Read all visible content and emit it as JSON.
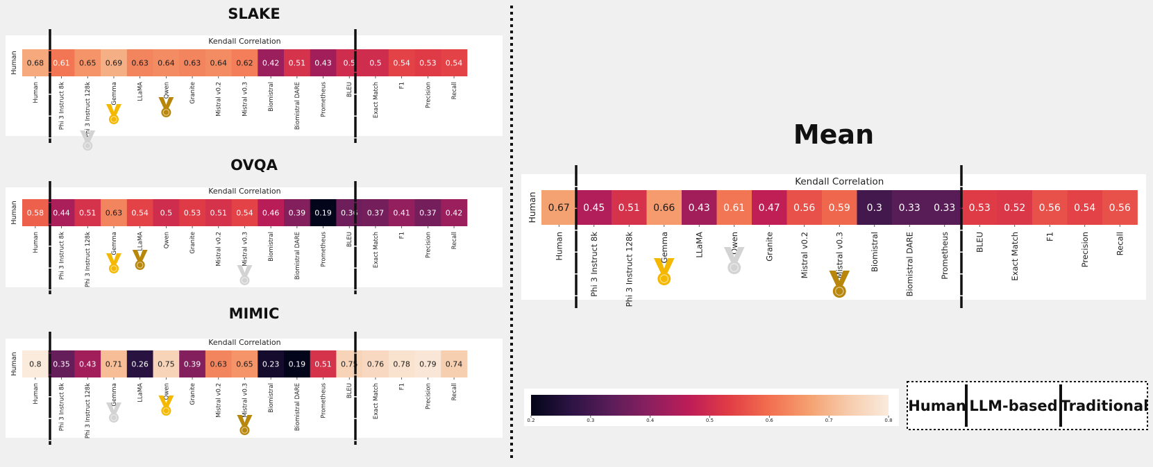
{
  "chart_data": [
    {
      "type": "heatmap",
      "title": "SLAKE",
      "subtitle": "Kendall Correlation",
      "ylabel": "Human",
      "categories": [
        "Human",
        "Phi 3 Instruct 8k",
        "Phi 3 Instruct 128k",
        "Gemma",
        "LLaMA",
        "Qwen",
        "Granite",
        "Mistral v0.2",
        "Mistral v0.3",
        "Biomistral",
        "Biomistral DARE",
        "Prometheus",
        "BLEU",
        "Exact Match",
        "F1",
        "Precision",
        "Recall"
      ],
      "values": [
        0.68,
        0.61,
        0.65,
        0.69,
        0.63,
        0.64,
        0.63,
        0.64,
        0.62,
        0.42,
        0.51,
        0.43,
        0.5,
        0.5,
        0.54,
        0.53,
        0.54
      ],
      "medals": {
        "gold": "Gemma",
        "silver": "Phi 3 Instruct 128k",
        "bronze": "Qwen"
      }
    },
    {
      "type": "heatmap",
      "title": "OVQA",
      "subtitle": "Kendall Correlation",
      "ylabel": "Human",
      "categories": [
        "Human",
        "Phi 3 Instruct 8k",
        "Phi 3 Instruct 128k",
        "Gemma",
        "LLaMA",
        "Qwen",
        "Granite",
        "Mistral v0.2",
        "Mistral v0.3",
        "Biomistral",
        "Biomistral DARE",
        "Prometheus",
        "BLEU",
        "Exact Match",
        "F1",
        "Precision",
        "Recall"
      ],
      "values": [
        0.58,
        0.44,
        0.51,
        0.63,
        0.54,
        0.5,
        0.53,
        0.51,
        0.54,
        0.46,
        0.39,
        0.19,
        0.36,
        0.37,
        0.41,
        0.37,
        0.42
      ],
      "medals": {
        "gold": "Gemma",
        "silver": "Mistral v0.3",
        "bronze": "LLaMA"
      }
    },
    {
      "type": "heatmap",
      "title": "MIMIC",
      "subtitle": "Kendall Correlation",
      "ylabel": "Human",
      "categories": [
        "Human",
        "Phi 3 Instruct 8k",
        "Phi 3 Instruct 128k",
        "Gemma",
        "LLaMA",
        "Qwen",
        "Granite",
        "Mistral v0.2",
        "Mistral v0.3",
        "Biomistral",
        "Biomistral DARE",
        "Prometheus",
        "BLEU",
        "Exact Match",
        "F1",
        "Precision",
        "Recall"
      ],
      "values": [
        0.8,
        0.35,
        0.43,
        0.71,
        0.26,
        0.75,
        0.39,
        0.63,
        0.65,
        0.23,
        0.19,
        0.51,
        0.75,
        0.76,
        0.78,
        0.79,
        0.74
      ],
      "medals": {
        "gold": "Qwen",
        "silver": "Gemma",
        "bronze": "Mistral v0.3"
      }
    },
    {
      "type": "heatmap",
      "title": "Mean",
      "subtitle": "Kendall Correlation",
      "ylabel": "Human",
      "categories": [
        "Human",
        "Phi 3 Instruct 8k",
        "Phi 3 Instruct 128k",
        "Gemma",
        "LLaMA",
        "Qwen",
        "Granite",
        "Mistral v0.2",
        "Mistral v0.3",
        "Biomistral",
        "Biomistral DARE",
        "Prometheus",
        "BLEU",
        "Exact Match",
        "F1",
        "Precision",
        "Recall"
      ],
      "values": [
        0.67,
        0.45,
        0.51,
        0.66,
        0.43,
        0.61,
        0.47,
        0.56,
        0.59,
        0.3,
        0.33,
        0.33,
        0.53,
        0.52,
        0.56,
        0.54,
        0.56
      ],
      "medals": {
        "gold": "Gemma",
        "silver": "Qwen",
        "bronze": "Mistral v0.3"
      }
    }
  ],
  "colorbar": {
    "range": [
      0.2,
      0.8
    ],
    "ticks": [
      "0.2",
      "0.3",
      "0.4",
      "0.5",
      "0.6",
      "0.7",
      "0.8"
    ],
    "colormap": [
      "#03051a",
      "#2c1343",
      "#5a1d58",
      "#8c1f5f",
      "#be1d57",
      "#e13d45",
      "#f26f4f",
      "#f5a070",
      "#f6ccac",
      "#faebdd"
    ]
  },
  "legend": {
    "groups": [
      "Human",
      "LLM-based",
      "Traditional"
    ]
  },
  "medal_colors": {
    "gold": "#f5b800",
    "silver": "#d3d3d3",
    "bronze": "#b8860b"
  }
}
